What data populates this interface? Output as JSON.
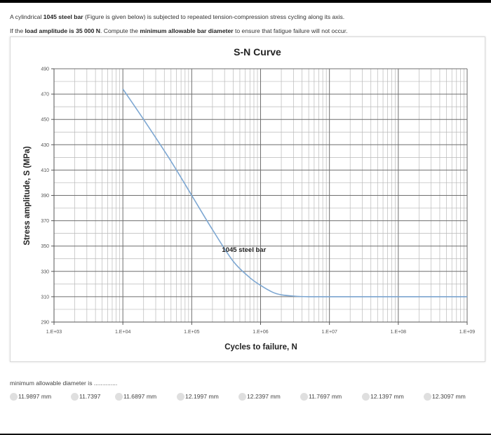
{
  "question": {
    "line1_pre": "A cylindrical ",
    "line1_bold": "1045 steel bar",
    "line1_post": " (Figure is given below) is subjected to repeated tension-compression stress cycling along its axis.",
    "line2_pre": "If the ",
    "line2_bold1": "load amplitude is 35 000 N",
    "line2_mid": ". Compute the ",
    "line2_bold2": "minimum allowable bar diameter",
    "line2_post": " to ensure that fatigue failure will not occur."
  },
  "chart_data": {
    "type": "line",
    "title": "S-N Curve",
    "xlabel": "Cycles to failure, N",
    "ylabel": "Stress amplitude, S (MPa)",
    "x_scale": "log",
    "xlim": [
      1000,
      1000000000
    ],
    "ylim": [
      290,
      490
    ],
    "grid": true,
    "x_ticks": [
      {
        "value": 1000,
        "label": "1.E+03"
      },
      {
        "value": 10000,
        "label": "1.E+04"
      },
      {
        "value": 100000,
        "label": "1.E+05"
      },
      {
        "value": 1000000,
        "label": "1.E+06"
      },
      {
        "value": 10000000,
        "label": "1.E+07"
      },
      {
        "value": 100000000,
        "label": "1.E+08"
      },
      {
        "value": 1000000000,
        "label": "1.E+09"
      }
    ],
    "y_ticks": [
      {
        "value": 290,
        "label": "290"
      },
      {
        "value": 310,
        "label": "310"
      },
      {
        "value": 330,
        "label": "330"
      },
      {
        "value": 350,
        "label": "350"
      },
      {
        "value": 370,
        "label": "370"
      },
      {
        "value": 390,
        "label": "390"
      },
      {
        "value": 410,
        "label": "410"
      },
      {
        "value": 430,
        "label": "430"
      },
      {
        "value": 450,
        "label": "450"
      },
      {
        "value": 470,
        "label": "470"
      },
      {
        "value": 490,
        "label": "490"
      }
    ],
    "series": [
      {
        "name": "1045 steel bar",
        "color": "#7da7d2",
        "x": [
          10000,
          20000,
          50000,
          100000,
          200000,
          400000,
          700000,
          1000000,
          1500000,
          2000000,
          3000000,
          5000000,
          10000000,
          100000000,
          1000000000
        ],
        "y": [
          474,
          450,
          417,
          390,
          363,
          338,
          325,
          319,
          313.5,
          311.5,
          310.5,
          310,
          310,
          310,
          310
        ]
      }
    ],
    "annotations": [
      {
        "text": "1045 steel bar",
        "x": 400000,
        "y": 347
      }
    ]
  },
  "answer": {
    "prompt": "minimum allowable diameter is ..............",
    "options": [
      "11.9897 mm",
      "11.7397",
      "11.6897 mm",
      "12.1997 mm",
      "12.2397 mm",
      "11.7697 mm",
      "12.1397 mm",
      "12.3097 mm"
    ]
  }
}
